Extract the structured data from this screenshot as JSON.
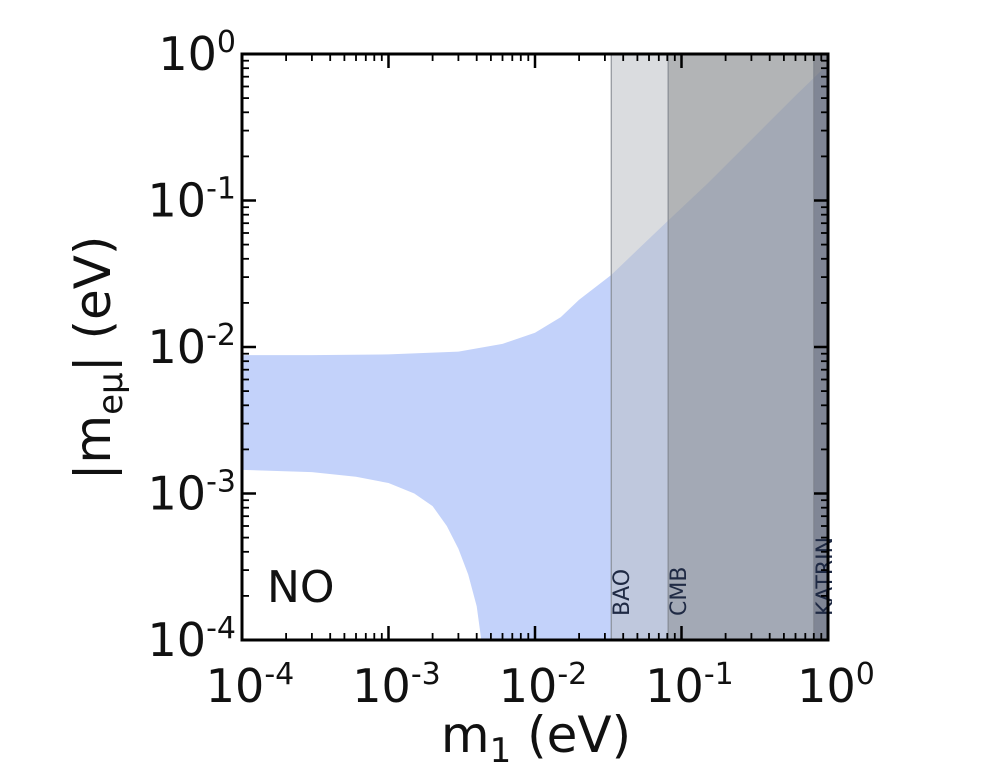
{
  "chart_data": {
    "type": "area",
    "x_scale": "log",
    "y_scale": "log",
    "xlim": [
      0.0001,
      1
    ],
    "ylim": [
      0.0001,
      1
    ],
    "xlabel": {
      "main": "m",
      "sub": "1",
      "unit": " (eV)"
    },
    "ylabel": {
      "pre": "|m",
      "sub": "eμ",
      "post": "| (eV)"
    },
    "x_ticks": [
      {
        "value": 0.0001,
        "base": "10",
        "exp": "-4"
      },
      {
        "value": 0.001,
        "base": "10",
        "exp": "-3"
      },
      {
        "value": 0.01,
        "base": "10",
        "exp": "-2"
      },
      {
        "value": 0.1,
        "base": "10",
        "exp": "-1"
      },
      {
        "value": 1,
        "base": "10",
        "exp": "0"
      }
    ],
    "y_ticks": [
      {
        "value": 0.0001,
        "base": "10",
        "exp": "-4"
      },
      {
        "value": 0.001,
        "base": "10",
        "exp": "-3"
      },
      {
        "value": 0.01,
        "base": "10",
        "exp": "-2"
      },
      {
        "value": 0.1,
        "base": "10",
        "exp": "-1"
      },
      {
        "value": 1,
        "base": "10",
        "exp": "0"
      }
    ],
    "grid": false,
    "panel_label": "NO",
    "allowed_region": {
      "color": "#c3d2fa",
      "upper": [
        {
          "x": 0.0001,
          "y": 0.0088
        },
        {
          "x": 0.0003,
          "y": 0.0088
        },
        {
          "x": 0.001,
          "y": 0.0089
        },
        {
          "x": 0.003,
          "y": 0.0093
        },
        {
          "x": 0.006,
          "y": 0.0105
        },
        {
          "x": 0.01,
          "y": 0.0125
        },
        {
          "x": 0.015,
          "y": 0.016
        },
        {
          "x": 0.02,
          "y": 0.021
        },
        {
          "x": 0.0331,
          "y": 0.031
        },
        {
          "x": 0.05,
          "y": 0.046
        },
        {
          "x": 0.08,
          "y": 0.072
        },
        {
          "x": 0.15,
          "y": 0.13
        },
        {
          "x": 0.3,
          "y": 0.26
        },
        {
          "x": 0.6,
          "y": 0.52
        },
        {
          "x": 1,
          "y": 0.85
        }
      ],
      "lower": [
        {
          "x": 0.0001,
          "y": 0.00145
        },
        {
          "x": 0.0003,
          "y": 0.0014
        },
        {
          "x": 0.0006,
          "y": 0.0013
        },
        {
          "x": 0.001,
          "y": 0.00118
        },
        {
          "x": 0.0015,
          "y": 0.001
        },
        {
          "x": 0.002,
          "y": 0.00082
        },
        {
          "x": 0.0025,
          "y": 0.0006
        },
        {
          "x": 0.003,
          "y": 0.00042
        },
        {
          "x": 0.0035,
          "y": 0.00028
        },
        {
          "x": 0.004,
          "y": 0.00017
        },
        {
          "x": 0.0043,
          "y": 0.0001
        }
      ]
    },
    "exclusion_bands": [
      {
        "label": "BAO",
        "x_min": 0.0331,
        "x_max": 1,
        "color": "#bcbfc4",
        "opacity": 0.55
      },
      {
        "label": "CMB",
        "x_min": 0.081,
        "x_max": 1,
        "color": "#808285",
        "opacity": 0.45
      },
      {
        "label": "KATRIN",
        "x_min": 0.8,
        "x_max": 1,
        "color": "#40465a",
        "opacity": 0.35
      }
    ]
  }
}
